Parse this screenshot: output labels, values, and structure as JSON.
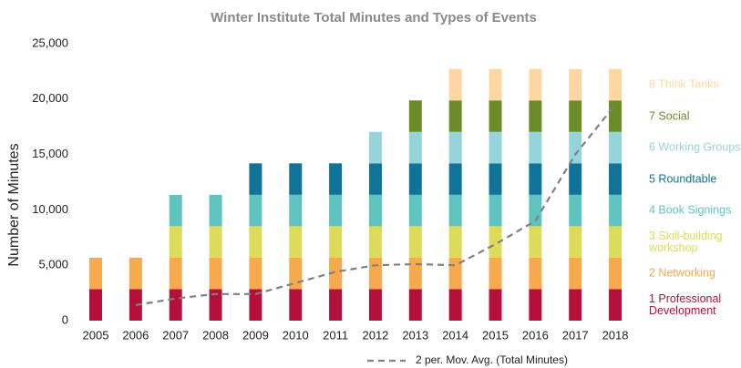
{
  "chart_data": {
    "type": "bar",
    "stacked": true,
    "title": "Winter Institute Total Minutes and Types of Events",
    "y_label": "Number of Minutes",
    "categories": [
      "2005",
      "2006",
      "2007",
      "2008",
      "2009",
      "2010",
      "2011",
      "2012",
      "2013",
      "2014",
      "2015",
      "2016",
      "2017",
      "2018"
    ],
    "ylim": [
      0,
      25000
    ],
    "yticks": [
      {
        "value": 0,
        "label": "0"
      },
      {
        "value": 5000,
        "label": "5,000"
      },
      {
        "value": 10000,
        "label": "10,000"
      },
      {
        "value": 15000,
        "label": "15,000"
      },
      {
        "value": 20000,
        "label": "20,000"
      },
      {
        "value": 25000,
        "label": "25,000"
      }
    ],
    "series": [
      {
        "name": "1 Professional Development",
        "color": "#b5103c",
        "values": [
          2840,
          2840,
          2840,
          2840,
          2840,
          2840,
          2840,
          2840,
          2840,
          2840,
          2840,
          2840,
          2840,
          2840
        ]
      },
      {
        "name": "2 Networking",
        "color": "#f7a94d",
        "values": [
          2840,
          2840,
          2840,
          2840,
          2840,
          2840,
          2840,
          2840,
          2840,
          2840,
          2840,
          2840,
          2840,
          2840
        ]
      },
      {
        "name": "3 Skill-building workshop",
        "color": "#dcdc5a",
        "values": [
          null,
          null,
          2840,
          2840,
          2840,
          2840,
          2840,
          2840,
          2840,
          2840,
          2840,
          2840,
          2840,
          2840
        ]
      },
      {
        "name": "4 Book Signings",
        "color": "#5fc4c0",
        "values": [
          null,
          null,
          2840,
          2840,
          2840,
          2840,
          2840,
          2840,
          2840,
          2840,
          2840,
          2840,
          2840,
          2840
        ]
      },
      {
        "name": "5 Roundtable",
        "color": "#0f7497",
        "values": [
          null,
          null,
          null,
          null,
          2840,
          2840,
          2840,
          2840,
          2840,
          2840,
          2840,
          2840,
          2840,
          2840
        ]
      },
      {
        "name": "6 Working Groups",
        "color": "#96d4dc",
        "values": [
          null,
          null,
          null,
          null,
          null,
          null,
          null,
          2840,
          2840,
          2840,
          2840,
          2840,
          2840,
          2840
        ]
      },
      {
        "name": "7 Social",
        "color": "#6e8b2a",
        "values": [
          null,
          null,
          null,
          null,
          null,
          null,
          null,
          null,
          2840,
          2840,
          2840,
          2840,
          2840,
          2840
        ]
      },
      {
        "name": "8 Think Tanks",
        "color": "#fdd7a3",
        "values": [
          null,
          null,
          null,
          null,
          null,
          null,
          null,
          null,
          null,
          2840,
          2840,
          2840,
          2840,
          2840
        ]
      },
      {
        "name": "2 per. Mov. Avg. (Total Minutes)",
        "type": "line",
        "color": "#808080",
        "values": [
          null,
          1400,
          2000,
          2400,
          2400,
          3400,
          4400,
          5000,
          5100,
          5000,
          6900,
          9000,
          15000,
          19500
        ]
      }
    ]
  }
}
